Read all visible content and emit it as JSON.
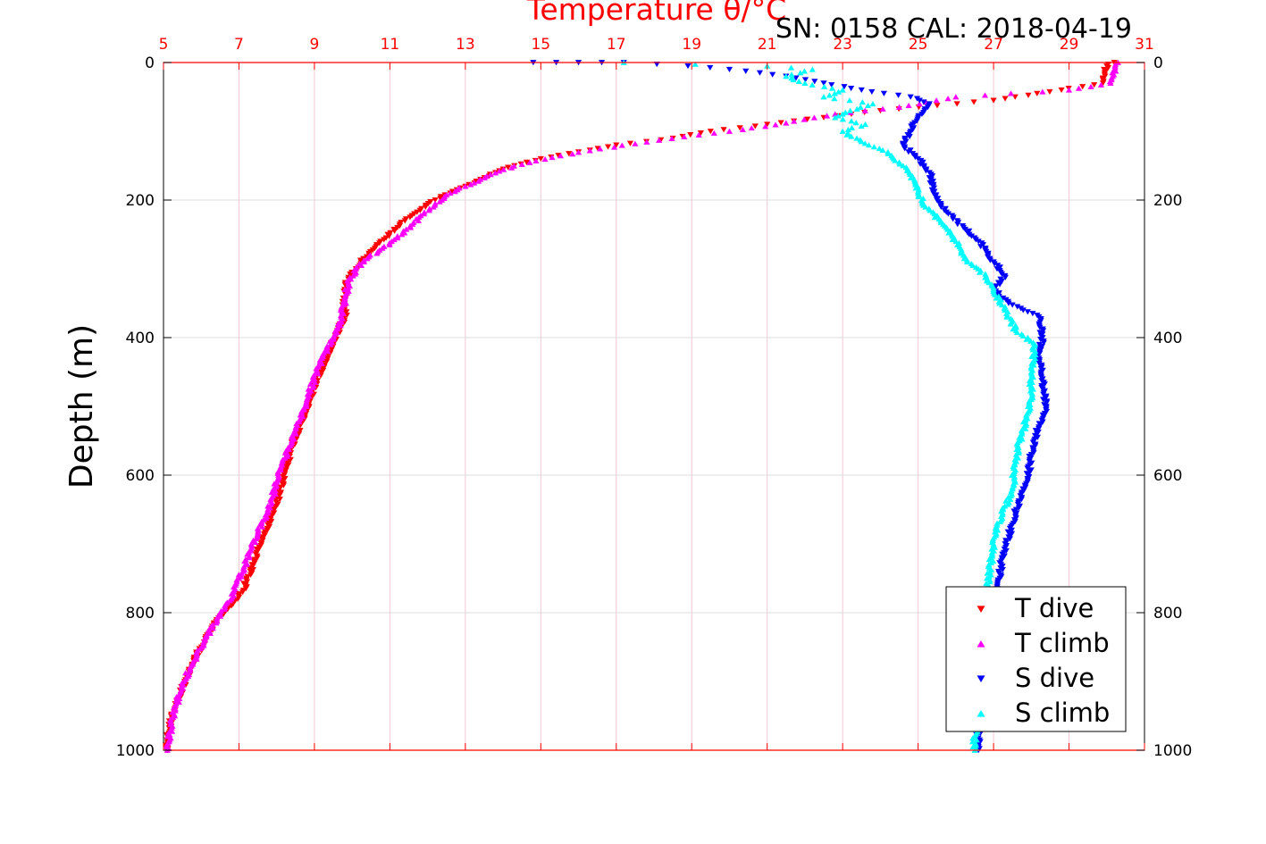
{
  "header": {
    "serial_label": "SN: 0158  CAL: 2018-04-19"
  },
  "chart_data": {
    "type": "scatter",
    "title": "Temperature θ/°C",
    "ylabel": "Depth (m)",
    "xlabel": "",
    "x_axis_position": "top",
    "xlim": [
      5,
      31
    ],
    "xticks": [
      5,
      7,
      9,
      11,
      13,
      15,
      17,
      19,
      21,
      23,
      25,
      27,
      29,
      31
    ],
    "ylim": [
      0,
      1000
    ],
    "y_reversed": true,
    "yticks": [
      0,
      200,
      400,
      600,
      800,
      1000
    ],
    "grid": true,
    "legend_position": "bottom-right",
    "colors": {
      "temperature_axis": "#ff0000",
      "grid_vertical": "#f2c8d2",
      "grid_horizontal": "#dcdcdc"
    },
    "series": [
      {
        "name": "T dive",
        "color": "#ff0000",
        "marker": "triangle-down",
        "points": [
          [
            30.2,
            0
          ],
          [
            30.0,
            5
          ],
          [
            29.9,
            30
          ],
          [
            27.0,
            55
          ],
          [
            24.0,
            70
          ],
          [
            22.5,
            80
          ],
          [
            21.0,
            90
          ],
          [
            19.5,
            100
          ],
          [
            18.5,
            110
          ],
          [
            17.0,
            120
          ],
          [
            16.0,
            130
          ],
          [
            15.0,
            140
          ],
          [
            14.3,
            150
          ],
          [
            13.8,
            160
          ],
          [
            13.4,
            170
          ],
          [
            13.0,
            180
          ],
          [
            12.6,
            190
          ],
          [
            12.2,
            200
          ],
          [
            11.8,
            215
          ],
          [
            11.4,
            230
          ],
          [
            11.2,
            240
          ],
          [
            10.9,
            255
          ],
          [
            10.6,
            270
          ],
          [
            10.3,
            285
          ],
          [
            10.1,
            300
          ],
          [
            9.9,
            315
          ],
          [
            9.8,
            330
          ],
          [
            9.8,
            350
          ],
          [
            9.8,
            370
          ],
          [
            9.6,
            395
          ],
          [
            9.4,
            420
          ],
          [
            9.2,
            445
          ],
          [
            9.0,
            470
          ],
          [
            8.9,
            490
          ],
          [
            8.8,
            505
          ],
          [
            8.6,
            530
          ],
          [
            8.4,
            560
          ],
          [
            8.2,
            600
          ],
          [
            8.0,
            640
          ],
          [
            7.8,
            670
          ],
          [
            7.5,
            710
          ],
          [
            7.3,
            740
          ],
          [
            7.1,
            770
          ],
          [
            6.8,
            790
          ],
          [
            6.5,
            805
          ],
          [
            6.2,
            830
          ],
          [
            5.8,
            870
          ],
          [
            5.5,
            910
          ],
          [
            5.2,
            950
          ],
          [
            5.1,
            980
          ],
          [
            5.1,
            1000
          ]
        ]
      },
      {
        "name": "T climb",
        "color": "#ff00ff",
        "marker": "triangle-up",
        "points": [
          [
            30.3,
            0
          ],
          [
            30.2,
            10
          ],
          [
            30.1,
            30
          ],
          [
            29.0,
            40
          ],
          [
            26.0,
            50
          ],
          [
            24.5,
            65
          ],
          [
            22.8,
            75
          ],
          [
            21.5,
            88
          ],
          [
            20.0,
            100
          ],
          [
            18.8,
            108
          ],
          [
            17.5,
            118
          ],
          [
            16.3,
            128
          ],
          [
            15.3,
            138
          ],
          [
            14.5,
            148
          ],
          [
            13.9,
            158
          ],
          [
            13.4,
            170
          ],
          [
            13.0,
            180
          ],
          [
            12.6,
            190
          ],
          [
            12.2,
            205
          ],
          [
            11.9,
            220
          ],
          [
            11.6,
            235
          ],
          [
            11.2,
            255
          ],
          [
            10.8,
            270
          ],
          [
            10.4,
            285
          ],
          [
            10.1,
            300
          ],
          [
            9.9,
            320
          ],
          [
            9.8,
            345
          ],
          [
            9.7,
            375
          ],
          [
            9.5,
            400
          ],
          [
            9.2,
            430
          ],
          [
            9.0,
            460
          ],
          [
            8.8,
            490
          ],
          [
            8.6,
            520
          ],
          [
            8.4,
            550
          ],
          [
            8.1,
            590
          ],
          [
            7.9,
            630
          ],
          [
            7.6,
            670
          ],
          [
            7.3,
            710
          ],
          [
            7.0,
            750
          ],
          [
            6.8,
            780
          ],
          [
            6.5,
            800
          ],
          [
            6.1,
            840
          ],
          [
            5.7,
            880
          ],
          [
            5.4,
            920
          ],
          [
            5.2,
            960
          ],
          [
            5.1,
            1000
          ]
        ]
      },
      {
        "name": "S dive",
        "color": "#0000ff",
        "marker": "triangle-down",
        "points": [
          [
            14.8,
            0
          ],
          [
            16.0,
            0
          ],
          [
            17.2,
            0
          ],
          [
            18.9,
            5
          ],
          [
            20.0,
            10
          ],
          [
            21.5,
            20
          ],
          [
            22.5,
            30
          ],
          [
            23.5,
            40
          ],
          [
            24.8,
            50
          ],
          [
            25.3,
            60
          ],
          [
            25.0,
            80
          ],
          [
            24.8,
            100
          ],
          [
            24.6,
            120
          ],
          [
            25.0,
            140
          ],
          [
            25.3,
            160
          ],
          [
            25.4,
            180
          ],
          [
            25.5,
            200
          ],
          [
            25.8,
            220
          ],
          [
            26.2,
            240
          ],
          [
            26.6,
            260
          ],
          [
            27.0,
            290
          ],
          [
            27.3,
            310
          ],
          [
            27.0,
            330
          ],
          [
            27.4,
            350
          ],
          [
            28.2,
            370
          ],
          [
            28.3,
            400
          ],
          [
            28.2,
            430
          ],
          [
            28.3,
            460
          ],
          [
            28.4,
            500
          ],
          [
            28.2,
            530
          ],
          [
            28.0,
            570
          ],
          [
            27.9,
            610
          ],
          [
            27.6,
            650
          ],
          [
            27.4,
            690
          ],
          [
            27.2,
            730
          ],
          [
            27.1,
            770
          ],
          [
            27.0,
            810
          ],
          [
            26.9,
            850
          ],
          [
            26.8,
            890
          ],
          [
            26.7,
            930
          ],
          [
            26.6,
            970
          ],
          [
            26.6,
            1000
          ]
        ]
      },
      {
        "name": "S climb",
        "color": "#00ffff",
        "marker": "triangle-up",
        "points": [
          [
            17.2,
            0
          ],
          [
            21.0,
            5
          ],
          [
            22.2,
            10
          ],
          [
            21.5,
            20
          ],
          [
            22.0,
            30
          ],
          [
            23.0,
            40
          ],
          [
            22.5,
            50
          ],
          [
            23.8,
            60
          ],
          [
            23.2,
            70
          ],
          [
            22.8,
            80
          ],
          [
            23.6,
            90
          ],
          [
            23.0,
            100
          ],
          [
            23.5,
            115
          ],
          [
            24.2,
            130
          ],
          [
            24.6,
            150
          ],
          [
            24.9,
            170
          ],
          [
            25.0,
            190
          ],
          [
            25.2,
            210
          ],
          [
            25.6,
            230
          ],
          [
            26.0,
            260
          ],
          [
            26.3,
            290
          ],
          [
            26.8,
            310
          ],
          [
            27.0,
            330
          ],
          [
            27.3,
            360
          ],
          [
            27.6,
            390
          ],
          [
            28.1,
            410
          ],
          [
            28.0,
            450
          ],
          [
            28.0,
            490
          ],
          [
            27.8,
            530
          ],
          [
            27.6,
            570
          ],
          [
            27.5,
            620
          ],
          [
            27.2,
            660
          ],
          [
            27.0,
            700
          ],
          [
            26.9,
            740
          ],
          [
            26.8,
            780
          ],
          [
            26.8,
            820
          ],
          [
            26.7,
            860
          ],
          [
            26.6,
            900
          ],
          [
            26.6,
            940
          ],
          [
            26.5,
            980
          ],
          [
            26.5,
            1000
          ]
        ]
      }
    ]
  }
}
